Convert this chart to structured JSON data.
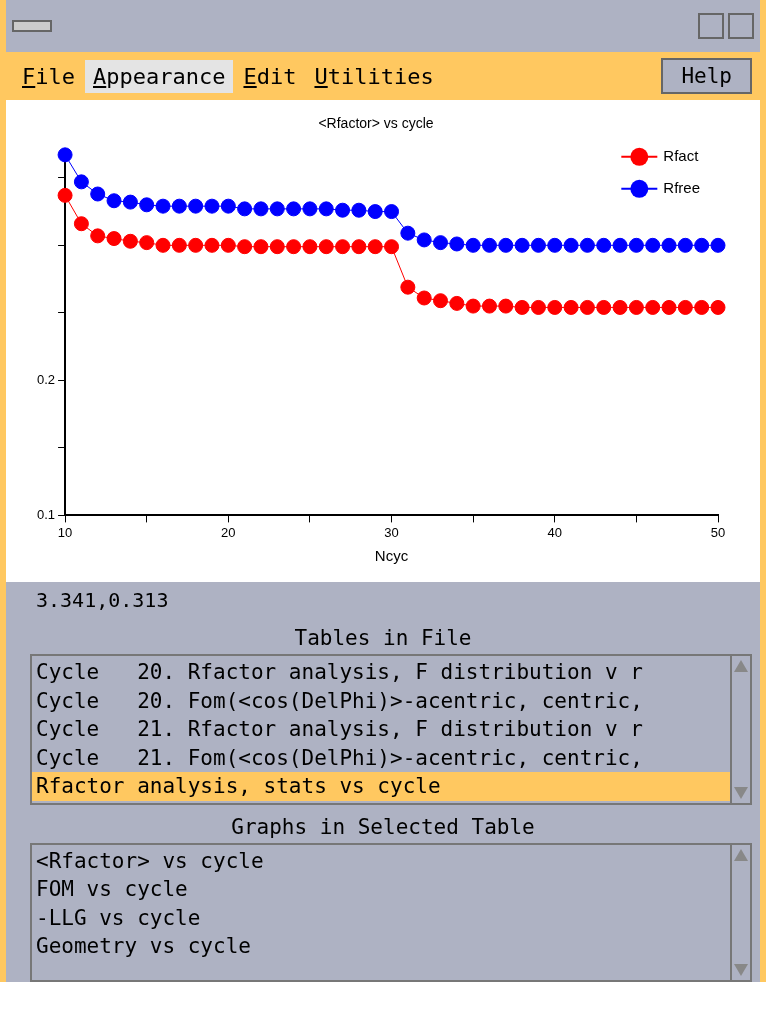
{
  "chart_data": [
    {
      "type": "line",
      "title": "<Rfactor> vs cycle",
      "xlabel": "Ncyc",
      "x": [
        10,
        11,
        12,
        13,
        14,
        15,
        16,
        17,
        18,
        19,
        20,
        21,
        22,
        23,
        24,
        25,
        26,
        27,
        28,
        29,
        30,
        31,
        32,
        33,
        34,
        35,
        36,
        37,
        38,
        39,
        40,
        41,
        42,
        43,
        44,
        45,
        46,
        47,
        48,
        49,
        50
      ],
      "series": [
        {
          "name": "Rfact",
          "color": "#ff0000",
          "values": [
            0.337,
            0.316,
            0.307,
            0.305,
            0.303,
            0.302,
            0.3,
            0.3,
            0.3,
            0.3,
            0.3,
            0.299,
            0.299,
            0.299,
            0.299,
            0.299,
            0.299,
            0.299,
            0.299,
            0.299,
            0.299,
            0.269,
            0.261,
            0.259,
            0.257,
            0.255,
            0.255,
            0.255,
            0.254,
            0.254,
            0.254,
            0.254,
            0.254,
            0.254,
            0.254,
            0.254,
            0.254,
            0.254,
            0.254,
            0.254,
            0.254
          ]
        },
        {
          "name": "Rfree",
          "color": "#0000ff",
          "values": [
            0.367,
            0.347,
            0.338,
            0.333,
            0.332,
            0.33,
            0.329,
            0.329,
            0.329,
            0.329,
            0.329,
            0.327,
            0.327,
            0.327,
            0.327,
            0.327,
            0.327,
            0.326,
            0.326,
            0.325,
            0.325,
            0.309,
            0.304,
            0.302,
            0.301,
            0.3,
            0.3,
            0.3,
            0.3,
            0.3,
            0.3,
            0.3,
            0.3,
            0.3,
            0.3,
            0.3,
            0.3,
            0.3,
            0.3,
            0.3,
            0.3
          ]
        }
      ],
      "xlim": [
        10,
        50
      ],
      "xticks": [
        10,
        {
          "value": 15,
          "label": null
        },
        20,
        {
          "value": 25,
          "label": null
        },
        30,
        {
          "value": 35,
          "label": null
        },
        40,
        {
          "value": 45,
          "label": null
        },
        50
      ],
      "ylim": [
        0.1,
        0.37
      ],
      "yticks": [
        0.1,
        {
          "value": 0.15,
          "label": null
        },
        0.2,
        {
          "value": 0.25,
          "label": null
        },
        {
          "value": 0.3,
          "label": null
        },
        {
          "value": 0.35,
          "label": null
        }
      ],
      "grid": false,
      "legend": "top right",
      "marker": "circle",
      "line_style": "solid"
    },
    {
      "type": "other",
      "annotations": [
        "File",
        "Appearance",
        "Edit",
        "Utilities",
        "Help"
      ]
    },
    {
      "type": "other",
      "annotations": [
        "3.341,0.313"
      ]
    },
    {
      "type": "other",
      "title": "Tables in File",
      "annotations": [
        "Cycle   20. Rfactor analysis, F distribution v r",
        "Cycle   20. Fom(<cos(DelPhi)>-acentric, centric,",
        "Cycle   21. Rfactor analysis, F distribution v r",
        "Cycle   21. Fom(<cos(DelPhi)>-acentric, centric,",
        "Rfactor analysis, stats vs cycle"
      ]
    },
    {
      "type": "other",
      "title": "Graphs in Selected Table",
      "annotations": [
        "<Rfactor> vs cycle",
        "FOM vs cycle",
        "-LLG vs cycle",
        "Geometry vs cycle"
      ]
    }
  ]
}
